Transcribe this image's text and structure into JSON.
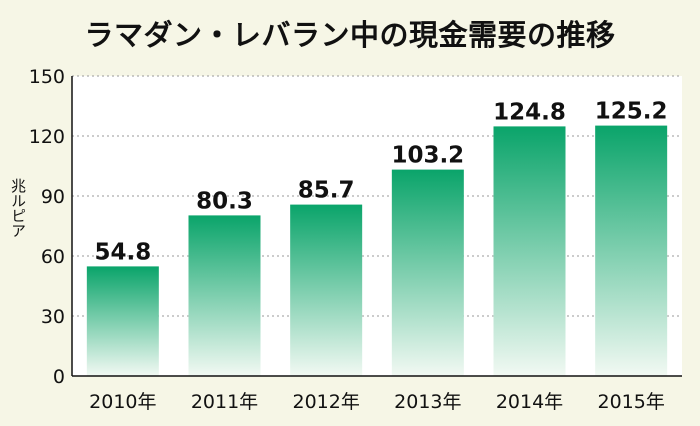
{
  "chart_data": {
    "type": "bar",
    "title": "ラマダン・レバラン中の現金需要の推移",
    "ylabel": "兆ルピア",
    "xlabel": "",
    "categories": [
      "2010年",
      "2011年",
      "2012年",
      "2013年",
      "2014年",
      "2015年"
    ],
    "values": [
      54.8,
      80.3,
      85.7,
      103.2,
      124.8,
      125.2
    ],
    "value_labels": [
      "54.8",
      "80.3",
      "85.7",
      "103.2",
      "124.8",
      "125.2"
    ],
    "ylim": [
      0,
      150
    ],
    "yticks": [
      "0",
      "30",
      "60",
      "90",
      "120",
      "150"
    ],
    "grid": true,
    "colors": {
      "bar_top": "#0aa46a",
      "bar_bottom": "#f2f9f3",
      "background": "#f6f6e6",
      "plot_background": "#ffffff",
      "grid": "#9a9a9a"
    }
  }
}
